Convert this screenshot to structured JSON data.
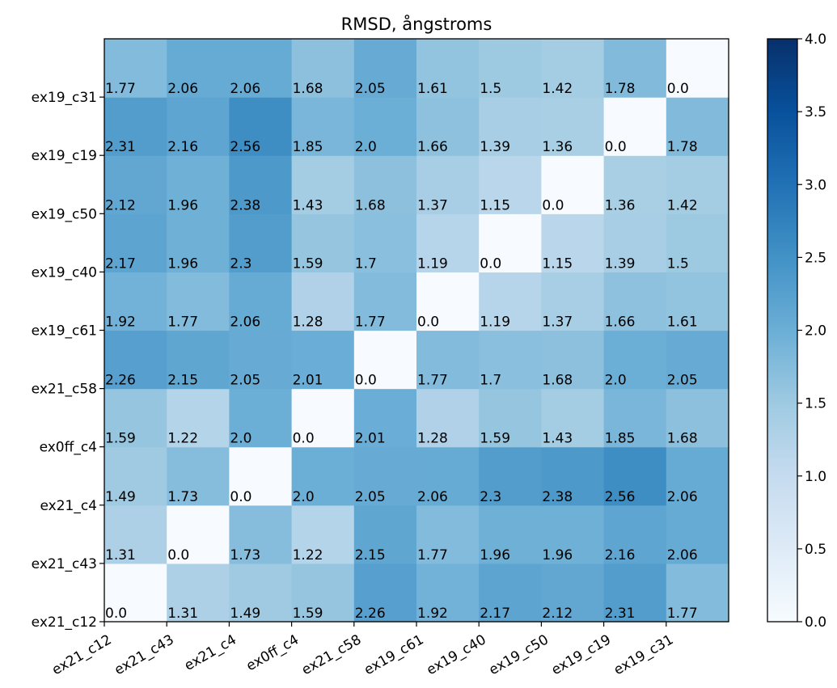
{
  "chart_data": {
    "type": "heatmap",
    "title": "RMSD, ångstroms",
    "x_categories": [
      "ex21_c12",
      "ex21_c43",
      "ex21_c4",
      "ex0ff_c4",
      "ex21_c58",
      "ex19_c61",
      "ex19_c40",
      "ex19_c50",
      "ex19_c19",
      "ex19_c31"
    ],
    "y_categories": [
      "ex21_c12",
      "ex21_c43",
      "ex21_c4",
      "ex0ff_c4",
      "ex21_c58",
      "ex19_c61",
      "ex19_c40",
      "ex19_c50",
      "ex19_c19",
      "ex19_c31"
    ],
    "values": [
      [
        0.0,
        1.31,
        1.49,
        1.59,
        2.26,
        1.92,
        2.17,
        2.12,
        2.31,
        1.77
      ],
      [
        1.31,
        0.0,
        1.73,
        1.22,
        2.15,
        1.77,
        1.96,
        1.96,
        2.16,
        2.06
      ],
      [
        1.49,
        1.73,
        0.0,
        2.0,
        2.05,
        2.06,
        2.3,
        2.38,
        2.56,
        2.06
      ],
      [
        1.59,
        1.22,
        2.0,
        0.0,
        2.01,
        1.28,
        1.59,
        1.43,
        1.85,
        1.68
      ],
      [
        2.26,
        2.15,
        2.05,
        2.01,
        0.0,
        1.77,
        1.7,
        1.68,
        2.0,
        2.05
      ],
      [
        1.92,
        1.77,
        2.06,
        1.28,
        1.77,
        0.0,
        1.19,
        1.37,
        1.66,
        1.61
      ],
      [
        2.17,
        1.96,
        2.3,
        1.59,
        1.7,
        1.19,
        0.0,
        1.15,
        1.39,
        1.5
      ],
      [
        2.12,
        1.96,
        2.38,
        1.43,
        1.68,
        1.37,
        1.15,
        0.0,
        1.36,
        1.42
      ],
      [
        2.31,
        2.16,
        2.56,
        1.85,
        2.0,
        1.66,
        1.39,
        1.36,
        0.0,
        1.78
      ],
      [
        1.77,
        2.06,
        2.06,
        1.68,
        2.05,
        1.61,
        1.5,
        1.42,
        1.78,
        0.0
      ]
    ],
    "value_labels": [
      [
        "0.0",
        "1.31",
        "1.49",
        "1.59",
        "2.26",
        "1.92",
        "2.17",
        "2.12",
        "2.31",
        "1.77"
      ],
      [
        "1.31",
        "0.0",
        "1.73",
        "1.22",
        "2.15",
        "1.77",
        "1.96",
        "1.96",
        "2.16",
        "2.06"
      ],
      [
        "1.49",
        "1.73",
        "0.0",
        "2.0",
        "2.05",
        "2.06",
        "2.3",
        "2.38",
        "2.56",
        "2.06"
      ],
      [
        "1.59",
        "1.22",
        "2.0",
        "0.0",
        "2.01",
        "1.28",
        "1.59",
        "1.43",
        "1.85",
        "1.68"
      ],
      [
        "2.26",
        "2.15",
        "2.05",
        "2.01",
        "0.0",
        "1.77",
        "1.7",
        "1.68",
        "2.0",
        "2.05"
      ],
      [
        "1.92",
        "1.77",
        "2.06",
        "1.28",
        "1.77",
        "0.0",
        "1.19",
        "1.37",
        "1.66",
        "1.61"
      ],
      [
        "2.17",
        "1.96",
        "2.3",
        "1.59",
        "1.7",
        "1.19",
        "0.0",
        "1.15",
        "1.39",
        "1.5"
      ],
      [
        "2.12",
        "1.96",
        "2.38",
        "1.43",
        "1.68",
        "1.37",
        "1.15",
        "0.0",
        "1.36",
        "1.42"
      ],
      [
        "2.31",
        "2.16",
        "2.56",
        "1.85",
        "2.0",
        "1.66",
        "1.39",
        "1.36",
        "0.0",
        "1.78"
      ],
      [
        "1.77",
        "2.06",
        "2.06",
        "1.68",
        "2.05",
        "1.61",
        "1.5",
        "1.42",
        "1.78",
        "0.0"
      ]
    ],
    "y_order": "bottom-to-top",
    "colormap": "Blues",
    "colorbar": {
      "range": [
        0.0,
        4.0
      ],
      "ticks": [
        0.0,
        0.5,
        1.0,
        1.5,
        2.0,
        2.5,
        3.0,
        3.5,
        4.0
      ],
      "tick_labels": [
        "0.0",
        "0.5",
        "1.0",
        "1.5",
        "2.0",
        "2.5",
        "3.0",
        "3.5",
        "4.0"
      ],
      "position": "right"
    },
    "grid": false
  }
}
